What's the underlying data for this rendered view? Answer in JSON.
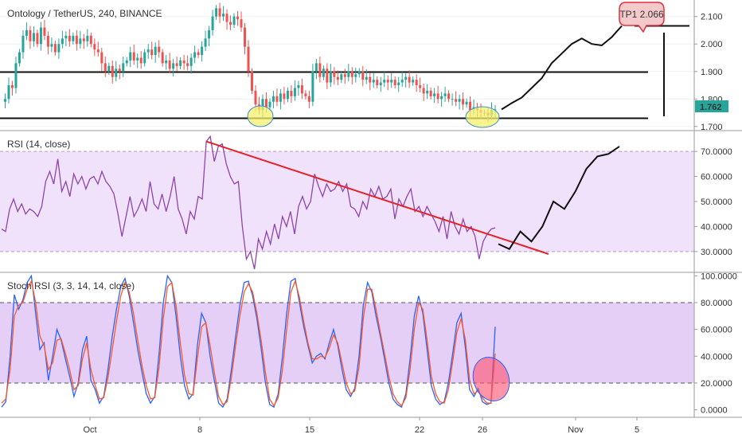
{
  "chart_data": [
    {
      "type": "candlestick",
      "title": "Ontology / TetherUS, 240, BINANCE",
      "ylim": [
        1.685,
        2.16
      ],
      "yticks": [
        1.7,
        1.8,
        1.9,
        2.0,
        2.1
      ],
      "ytick_labels": [
        "1.700",
        "1.800",
        "1.900",
        "2.000",
        "2.100"
      ],
      "last_price_label": "1.762",
      "target_label": "TP1 2.066",
      "support_level": 1.73,
      "resistance_level": 1.898,
      "top_level": 2.066,
      "top_level_label": "2.066",
      "close_path": [
        1.79,
        1.8,
        1.85,
        1.84,
        1.93,
        1.97,
        2.03,
        2.05,
        2.01,
        2.04,
        2.0,
        2.06,
        2.03,
        1.99,
        2.0,
        1.97,
        2.0,
        2.02,
        2.03,
        2.01,
        2.03,
        2.0,
        2.02,
        2.01,
        2.03,
        2.0,
        1.98,
        1.97,
        1.93,
        1.9,
        1.92,
        1.88,
        1.91,
        1.9,
        1.93,
        1.94,
        1.97,
        1.94,
        1.95,
        1.93,
        1.97,
        1.98,
        1.96,
        1.99,
        1.97,
        1.93,
        1.94,
        1.91,
        1.93,
        1.92,
        1.94,
        1.93,
        1.92,
        1.95,
        1.97,
        1.96,
        1.99,
        2.02,
        2.05,
        2.1,
        2.13,
        2.1,
        2.11,
        2.08,
        2.07,
        2.1,
        2.09,
        2.06,
        1.99,
        1.9,
        1.83,
        1.78,
        1.76,
        1.8,
        1.77,
        1.79,
        1.81,
        1.79,
        1.82,
        1.8,
        1.83,
        1.81,
        1.84,
        1.85,
        1.82,
        1.81,
        1.79,
        1.9,
        1.93,
        1.88,
        1.91,
        1.86,
        1.9,
        1.88,
        1.87,
        1.89,
        1.88,
        1.9,
        1.88,
        1.89,
        1.9,
        1.87,
        1.88,
        1.86,
        1.87,
        1.85,
        1.86,
        1.87,
        1.86,
        1.87,
        1.85,
        1.86,
        1.87,
        1.88,
        1.86,
        1.87,
        1.85,
        1.84,
        1.82,
        1.83,
        1.81,
        1.82,
        1.8,
        1.81,
        1.82,
        1.8,
        1.8,
        1.79,
        1.8,
        1.78,
        1.79,
        1.76,
        1.77,
        1.76,
        1.75,
        1.75,
        1.74,
        1.76,
        1.762
      ],
      "forecast_path": [
        1.762,
        1.785,
        1.805,
        1.84,
        1.875,
        1.93,
        1.965,
        2.0,
        2.02,
        2.0,
        1.995,
        2.025,
        2.066
      ]
    },
    {
      "type": "line",
      "title": "RSI (14, close)",
      "ylim": [
        22,
        78
      ],
      "yticks": [
        30,
        40,
        50,
        60,
        70
      ],
      "ytick_labels": [
        "30.0000",
        "40.0000",
        "50.0000",
        "60.0000",
        "70.0000"
      ],
      "band": [
        30,
        70
      ],
      "values": [
        39,
        38,
        47,
        51,
        46,
        49,
        45,
        47,
        46,
        44,
        48,
        58,
        62,
        57,
        67,
        54,
        58,
        52,
        61,
        57,
        60,
        55,
        59,
        60,
        57,
        62,
        58,
        56,
        53,
        45,
        36,
        44,
        52,
        44,
        47,
        51,
        46,
        58,
        49,
        47,
        53,
        46,
        52,
        60,
        47,
        43,
        37,
        46,
        43,
        52,
        51,
        74,
        76,
        66,
        72,
        73,
        65,
        60,
        57,
        58,
        40,
        27,
        30,
        23,
        35,
        31,
        38,
        33,
        41,
        35,
        44,
        40,
        46,
        37,
        48,
        52,
        47,
        50,
        61,
        56,
        52,
        57,
        54,
        55,
        58,
        54,
        57,
        48,
        47,
        44,
        50,
        47,
        55,
        52,
        56,
        51,
        52,
        55,
        43,
        51,
        48,
        52,
        55,
        46,
        48,
        44,
        48,
        45,
        42,
        38,
        44,
        35,
        46,
        40,
        37,
        43,
        38,
        40,
        36,
        27,
        34,
        37,
        39,
        39.5
      ],
      "forecast": [
        33,
        31,
        38,
        34,
        40,
        50,
        47,
        54,
        63,
        68,
        69,
        72
      ],
      "trendline": [
        [
          77,
          74
        ],
        [
          590,
          29
        ]
      ]
    },
    {
      "type": "line",
      "title": "Stoch RSI (3, 3, 14, 14, close)",
      "ylim": [
        -5,
        102
      ],
      "yticks": [
        0,
        20,
        40,
        60,
        80,
        100
      ],
      "ytick_labels": [
        "0.0000",
        "20.0000",
        "40.0000",
        "60.0000",
        "80.0000",
        "100.0000"
      ],
      "band": [
        20,
        80
      ],
      "series": [
        {
          "color": "#2962ff",
          "values": [
            2,
            6,
            40,
            86,
            75,
            82,
            95,
            100,
            72,
            45,
            50,
            22,
            40,
            60,
            52,
            38,
            25,
            10,
            20,
            45,
            55,
            22,
            15,
            5,
            10,
            30,
            55,
            75,
            92,
            98,
            85,
            65,
            45,
            28,
            12,
            5,
            10,
            42,
            80,
            100,
            95,
            70,
            40,
            18,
            8,
            12,
            48,
            72,
            65,
            40,
            22,
            5,
            2,
            8,
            30,
            55,
            78,
            95,
            96,
            85,
            68,
            46,
            20,
            4,
            2,
            12,
            40,
            72,
            96,
            98,
            80,
            62,
            48,
            35,
            40,
            42,
            38,
            50,
            60,
            48,
            30,
            15,
            10,
            16,
            40,
            78,
            95,
            88,
            70,
            55,
            38,
            20,
            8,
            4,
            2,
            12,
            38,
            70,
            85,
            72,
            45,
            18,
            8,
            4,
            6,
            20,
            42,
            65,
            72,
            46,
            15,
            10,
            16,
            6,
            4,
            5,
            62
          ]
        },
        {
          "color": "#ff5722",
          "values": [
            5,
            8,
            30,
            70,
            78,
            80,
            90,
            96,
            80,
            55,
            48,
            30,
            35,
            52,
            53,
            42,
            30,
            15,
            18,
            38,
            50,
            30,
            18,
            8,
            9,
            24,
            45,
            66,
            85,
            95,
            88,
            72,
            52,
            33,
            18,
            8,
            9,
            32,
            68,
            92,
            95,
            78,
            50,
            26,
            12,
            11,
            38,
            62,
            65,
            48,
            28,
            10,
            4,
            6,
            24,
            48,
            70,
            88,
            94,
            88,
            72,
            52,
            28,
            8,
            3,
            9,
            30,
            60,
            88,
            96,
            84,
            66,
            50,
            38,
            38,
            40,
            39,
            46,
            56,
            50,
            35,
            20,
            12,
            14,
            32,
            68,
            90,
            90,
            75,
            58,
            42,
            25,
            12,
            6,
            3,
            9,
            30,
            60,
            80,
            75,
            52,
            25,
            12,
            6,
            5,
            15,
            36,
            58,
            68,
            52,
            22,
            12,
            14,
            9,
            5,
            5,
            42
          ]
        }
      ]
    }
  ],
  "x_axis": {
    "tick_labels": [
      "Oct",
      "8",
      "15",
      "22",
      "26",
      "Nov",
      "5"
    ]
  }
}
